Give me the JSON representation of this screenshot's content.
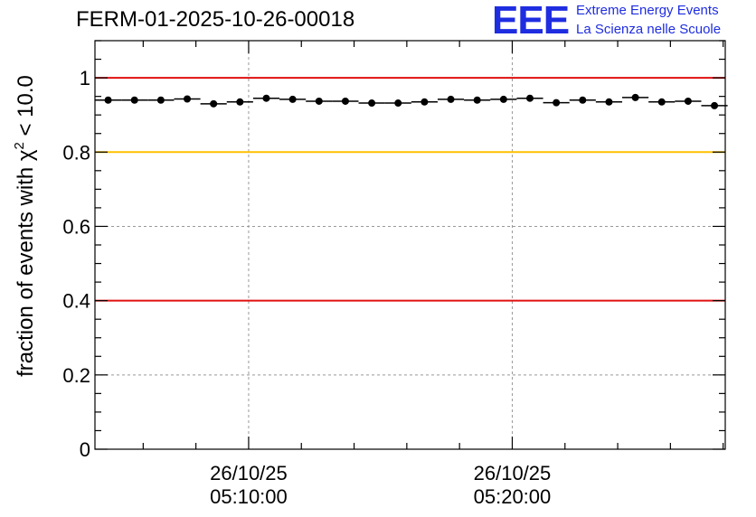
{
  "header": {
    "run_title": "FERM-01-2025-10-26-00018",
    "logo_text": "EEE",
    "logo_line1": "Extreme Energy Events",
    "logo_line2": "La Scienza nelle Scuole"
  },
  "colors": {
    "red_line": "#e01010",
    "yellow_line": "#ffc000",
    "grid": "#999999",
    "points": "#000000",
    "logo": "#1f2de0"
  },
  "chart_data": {
    "type": "scatter",
    "title": "FERM-01-2025-10-26-00018",
    "ylabel": "fraction of events with χ² < 10.0",
    "ylabel_prefix": "fraction of events with χ",
    "ylabel_sup": "2",
    "ylabel_suffix": " < 10.0",
    "xlabel": "",
    "xlim_minutes": [
      4.17,
      28.08
    ],
    "ylim": [
      0,
      1.1
    ],
    "y_ticks": [
      0,
      0.2,
      0.4,
      0.6,
      0.8,
      1
    ],
    "y_tick_labels": [
      "0",
      "0.2",
      "0.4",
      "0.6",
      "0.8",
      "1"
    ],
    "x_ticks_minutes": [
      10,
      20
    ],
    "x_tick_labels": [
      {
        "date": "26/10/25",
        "time": "05:10:00"
      },
      {
        "date": "26/10/25",
        "time": "05:20:00"
      }
    ],
    "reference_lines": [
      {
        "y": 1.0,
        "color": "red"
      },
      {
        "y": 0.8,
        "color": "yellow"
      },
      {
        "y": 0.4,
        "color": "red"
      }
    ],
    "bin_width_minutes": 1.0,
    "series": [
      {
        "name": "fraction",
        "x_minutes": [
          4.67,
          5.67,
          6.67,
          7.67,
          8.67,
          9.67,
          10.67,
          11.67,
          12.67,
          13.67,
          14.67,
          15.67,
          16.67,
          17.67,
          18.67,
          19.67,
          20.67,
          21.67,
          22.67,
          23.67,
          24.67,
          25.67,
          26.67,
          27.67
        ],
        "values": [
          0.94,
          0.94,
          0.94,
          0.943,
          0.93,
          0.935,
          0.945,
          0.942,
          0.937,
          0.937,
          0.932,
          0.932,
          0.935,
          0.942,
          0.94,
          0.942,
          0.945,
          0.933,
          0.94,
          0.935,
          0.947,
          0.935,
          0.937,
          0.925
        ]
      }
    ]
  }
}
